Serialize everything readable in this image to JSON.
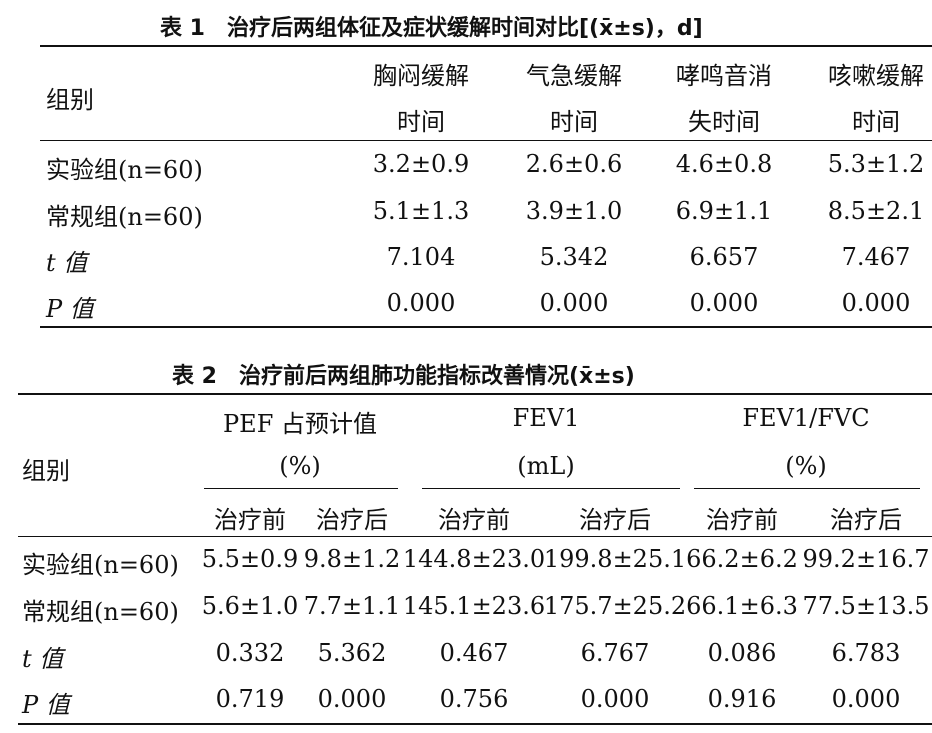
{
  "table1": {
    "title": "表 1　治疗后两组体征及症状缓解时间对比[(x̄±s)，d]",
    "row_header": "组别",
    "columns": [
      {
        "line1": "胸闷缓解",
        "line2": "时间"
      },
      {
        "line1": "气急缓解",
        "line2": "时间"
      },
      {
        "line1": "哮鸣音消",
        "line2": "失时间"
      },
      {
        "line1": "咳嗽缓解",
        "line2": "时间"
      }
    ],
    "rows": [
      {
        "label": "实验组(n=60)",
        "values": [
          "3.2±0.9",
          "2.6±0.6",
          "4.6±0.8",
          "5.3±1.2"
        ]
      },
      {
        "label": "常规组(n=60)",
        "values": [
          "5.1±1.3",
          "3.9±1.0",
          "6.9±1.1",
          "8.5±2.1"
        ]
      },
      {
        "label": "t 值",
        "values": [
          "7.104",
          "5.342",
          "6.657",
          "7.467"
        ]
      },
      {
        "label": "P 值",
        "values": [
          "0.000",
          "0.000",
          "0.000",
          "0.000"
        ]
      }
    ]
  },
  "table2": {
    "title": "表 2　治疗前后两组肺功能指标改善情况(x̄±s)",
    "row_header": "组别",
    "groups": [
      {
        "name": "PEF 占预计值",
        "unit": "(%)"
      },
      {
        "name": "FEV1",
        "unit": "(mL)"
      },
      {
        "name": "FEV1/FVC",
        "unit": "(%)"
      }
    ],
    "subheaders": [
      "治疗前",
      "治疗后",
      "治疗前",
      "治疗后",
      "治疗前",
      "治疗后"
    ],
    "rows": [
      {
        "label": "实验组(n=60)",
        "values": [
          "5.5±0.9",
          "9.8±1.2",
          "144.8±23.0",
          "199.8±25.1",
          "66.2±6.2",
          "99.2±16.7"
        ]
      },
      {
        "label": "常规组(n=60)",
        "values": [
          "5.6±1.0",
          "7.7±1.1",
          "145.1±23.6",
          "175.7±25.2",
          "66.1±6.3",
          "77.5±13.5"
        ]
      },
      {
        "label": "t 值",
        "values": [
          "0.332",
          "5.362",
          "0.467",
          "6.767",
          "0.086",
          "6.783"
        ]
      },
      {
        "label": "P 值",
        "values": [
          "0.719",
          "0.000",
          "0.756",
          "0.000",
          "0.916",
          "0.000"
        ]
      }
    ]
  }
}
